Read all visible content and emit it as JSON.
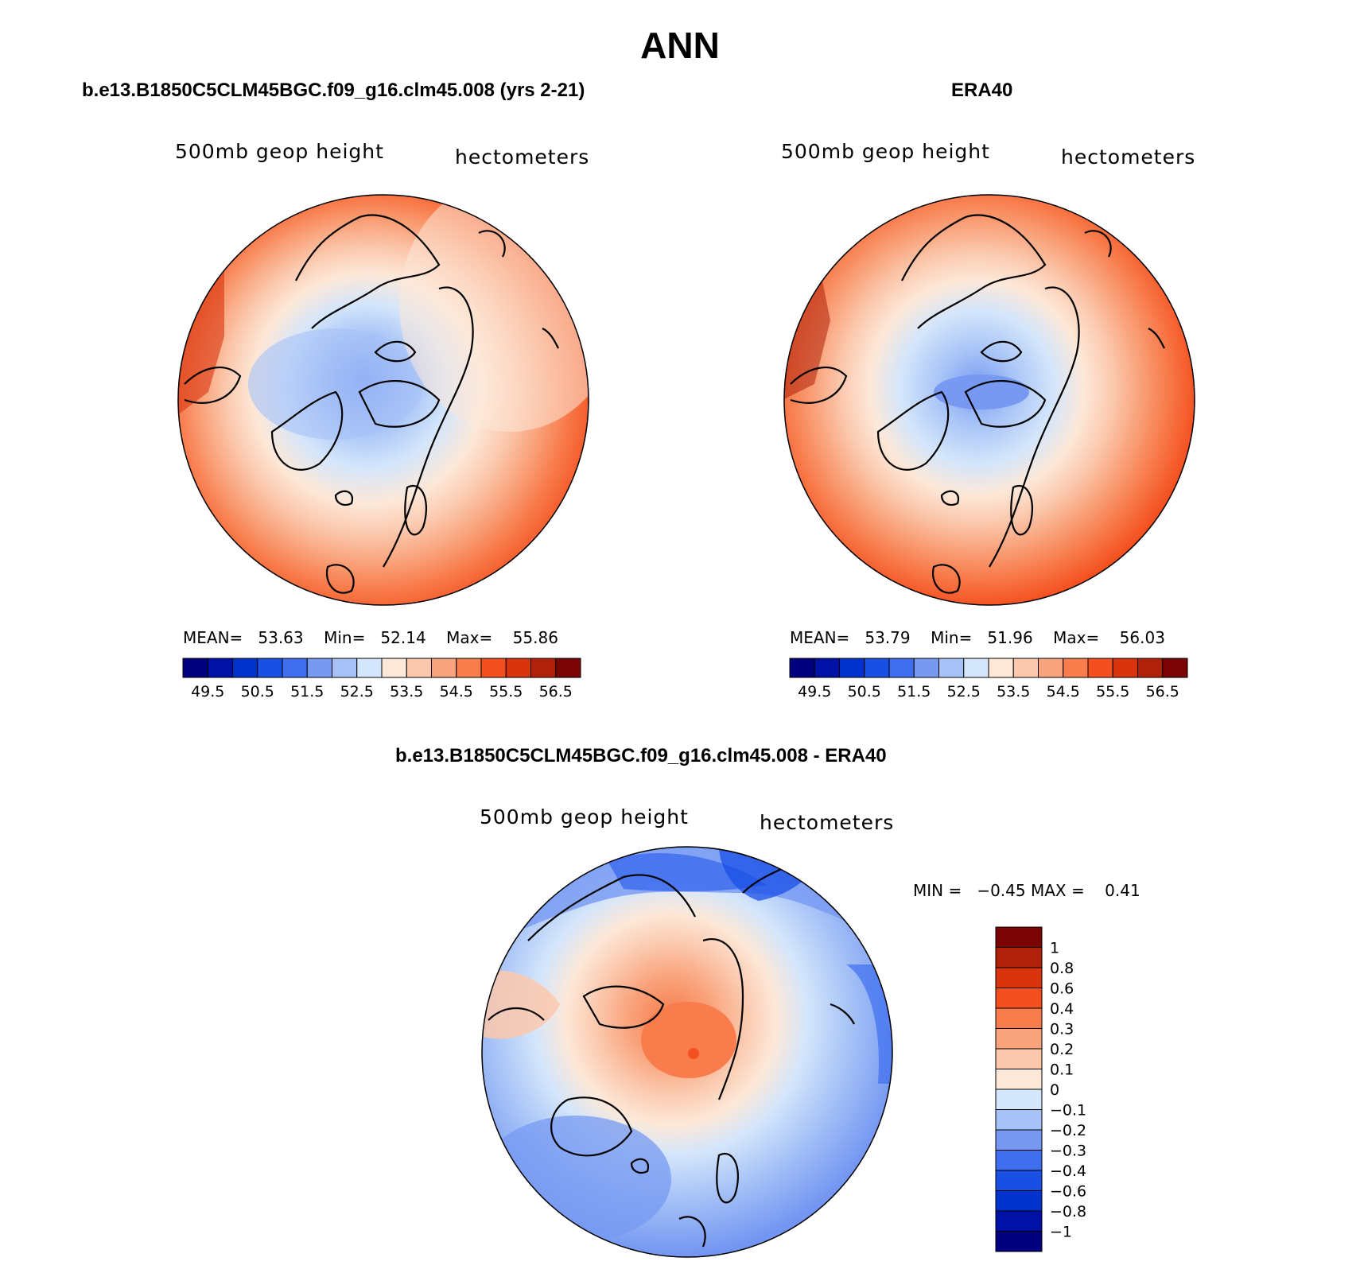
{
  "figure": {
    "title": "ANN"
  },
  "panels": [
    {
      "id": "model",
      "title": "b.e13.B1850C5CLM45BGC.f09_g16.clm45.008 (yrs 2-21)",
      "variable": "500mb  geop  height",
      "units": "hectometers",
      "stats": {
        "mean_label": "MEAN=",
        "mean": "53.63",
        "min_label": "Min=",
        "min": "52.14",
        "max_label": "Max=",
        "max": "55.86"
      }
    },
    {
      "id": "obs",
      "title": "ERA40",
      "variable": "500mb  geop  height",
      "units": "hectometers",
      "stats": {
        "mean_label": "MEAN=",
        "mean": "53.79",
        "min_label": "Min=",
        "min": "51.96",
        "max_label": "Max=",
        "max": "56.03"
      }
    },
    {
      "id": "diff",
      "title": "b.e13.B1850C5CLM45BGC.f09_g16.clm45.008 - ERA40",
      "variable": "500mb  geop  height",
      "units": "hectometers",
      "stats": {
        "min_label": "MIN =",
        "min": "−0.45",
        "max_label": "MAX =",
        "max": "0.41"
      }
    }
  ],
  "colorbar_abs": {
    "colors": [
      "#00007f",
      "#0011a6",
      "#0033cc",
      "#1a4fe6",
      "#3f6fef",
      "#7799f2",
      "#a6c2f7",
      "#d4e6fb",
      "#fde8d8",
      "#fbc8ad",
      "#f9a47d",
      "#f87c4c",
      "#f4501f",
      "#d8340d",
      "#b0200a",
      "#7a0404"
    ],
    "labels": [
      "49.5",
      "50.5",
      "51.5",
      "52.5",
      "53.5",
      "54.5",
      "55.5",
      "56.5"
    ]
  },
  "colorbar_diff": {
    "colors": [
      "#7a0404",
      "#b0200a",
      "#d8340d",
      "#f4501f",
      "#f87c4c",
      "#f9a47d",
      "#fbc8ad",
      "#fde8d8",
      "#d4e6fb",
      "#a6c2f7",
      "#7799f2",
      "#3f6fef",
      "#1a4fe6",
      "#0033cc",
      "#0011a6",
      "#00007f"
    ],
    "labels": [
      "1",
      "0.8",
      "0.6",
      "0.4",
      "0.3",
      "0.2",
      "0.1",
      "0",
      "−0.1",
      "−0.2",
      "−0.3",
      "−0.4",
      "−0.6",
      "−0.8",
      "−1"
    ]
  }
}
